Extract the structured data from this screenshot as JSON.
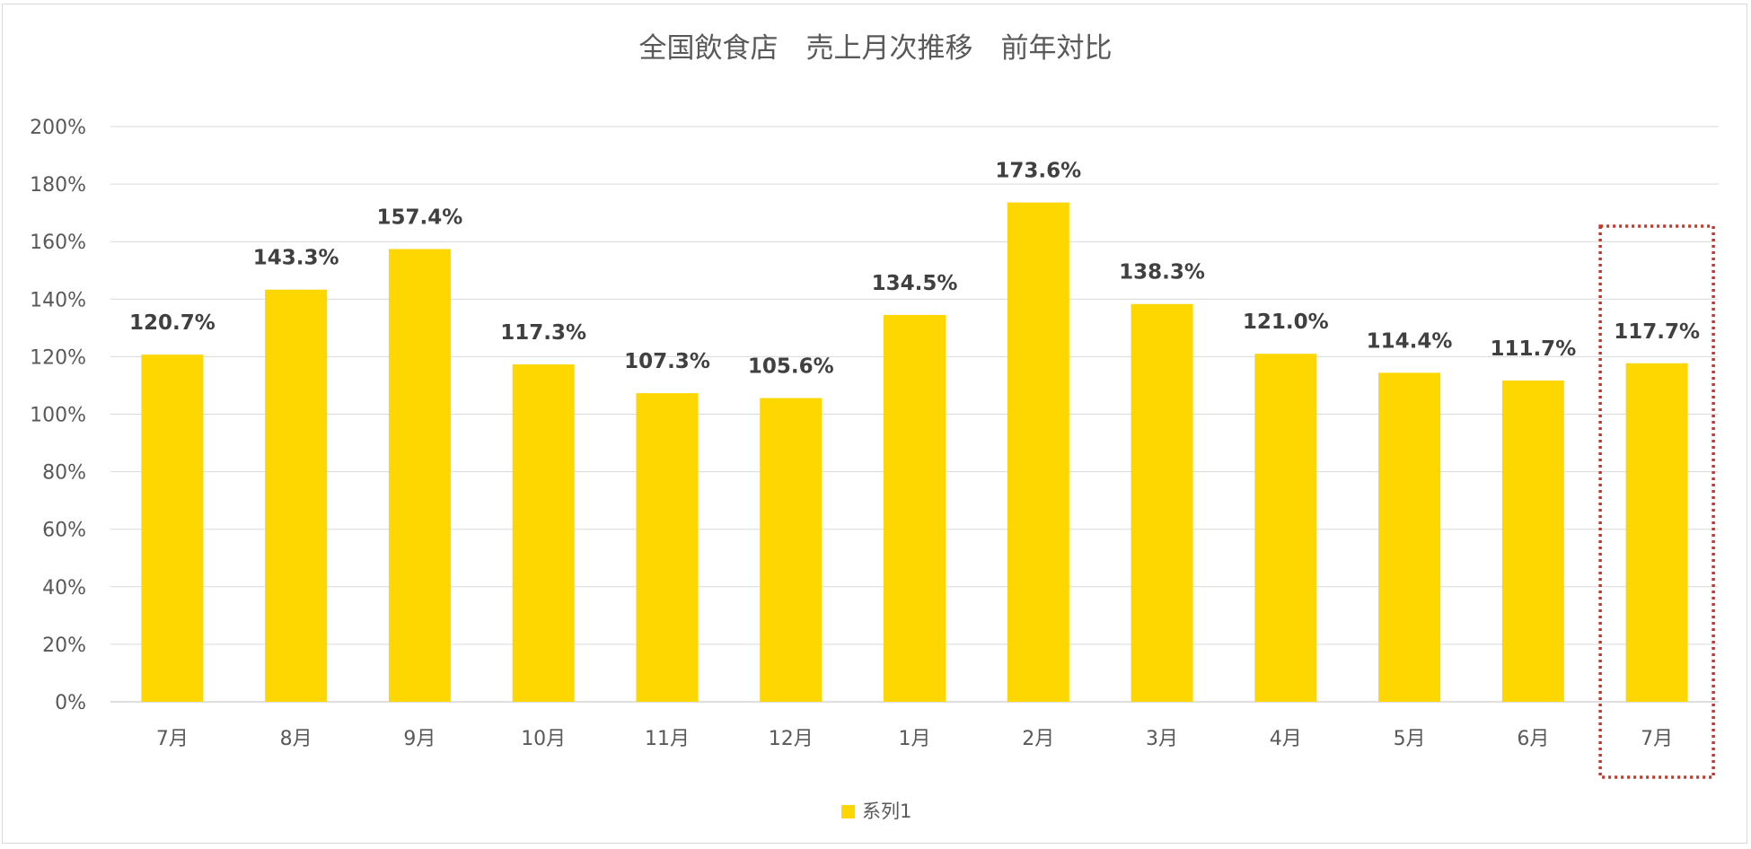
{
  "chart_data": {
    "type": "bar",
    "title": "全国飲食店　売上月次推移　前年対比",
    "categories": [
      "7月",
      "8月",
      "9月",
      "10月",
      "11月",
      "12月",
      "1月",
      "2月",
      "3月",
      "4月",
      "5月",
      "6月",
      "7月"
    ],
    "series": [
      {
        "name": "系列1",
        "values": [
          120.7,
          143.3,
          157.4,
          117.3,
          107.3,
          105.6,
          134.5,
          173.6,
          138.3,
          121.0,
          114.4,
          111.7,
          117.7
        ],
        "data_labels": [
          "120.7%",
          "143.3%",
          "157.4%",
          "117.3%",
          "107.3%",
          "105.6%",
          "134.5%",
          "173.6%",
          "138.3%",
          "121.0%",
          "114.4%",
          "111.7%",
          "117.7%"
        ],
        "color": "#FFD700"
      }
    ],
    "yticks": [
      "0%",
      "20%",
      "40%",
      "60%",
      "80%",
      "100%",
      "120%",
      "140%",
      "160%",
      "180%",
      "200%"
    ],
    "ylim": [
      0,
      200
    ],
    "xlabel": "",
    "ylabel": "",
    "grid": true,
    "legend_position": "bottom",
    "highlight": {
      "category_index": 12,
      "style": "dotted-box",
      "color": "#C0392B"
    }
  }
}
